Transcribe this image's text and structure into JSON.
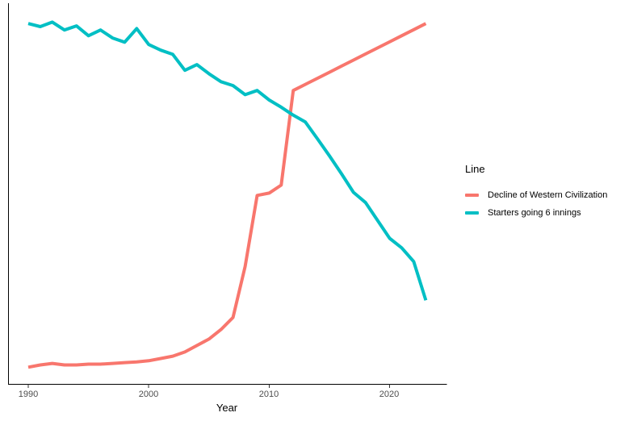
{
  "chart_data": {
    "type": "line",
    "title": "",
    "xlabel": "Year",
    "ylabel": "",
    "x_ticks": [
      1990,
      2000,
      2010,
      2020
    ],
    "xlim": [
      1988.3,
      2024.7
    ],
    "ylim": [
      0,
      100
    ],
    "y_axis_note": "y-axis drawn with no ticks or labels; series values estimated on a 0-100 scale",
    "grid": false,
    "legend_title": "Line",
    "legend_position": "right",
    "background_color": "#FFFFFF",
    "axis_line_color": "#000000",
    "tick_mark_color": "#333333",
    "tick_label_color": "#4D4D4D",
    "x": [
      1990,
      1991,
      1992,
      1993,
      1994,
      1995,
      1996,
      1997,
      1998,
      1999,
      2000,
      2001,
      2002,
      2003,
      2004,
      2005,
      2006,
      2007,
      2008,
      2009,
      2010,
      2011,
      2012,
      2013,
      2014,
      2015,
      2016,
      2017,
      2018,
      2019,
      2020,
      2021,
      2022,
      2023
    ],
    "series": [
      {
        "name": "Decline of Western Civilization",
        "color": "#F8766D",
        "values": [
          4.5,
          5.1,
          5.5,
          5.1,
          5.1,
          5.3,
          5.3,
          5.5,
          5.7,
          5.9,
          6.2,
          6.8,
          7.4,
          8.5,
          10.2,
          11.9,
          14.4,
          17.6,
          31.0,
          49.7,
          50.3,
          52.4,
          77.3,
          78.9,
          80.5,
          82.1,
          83.7,
          85.3,
          86.9,
          88.5,
          90.1,
          91.7,
          93.3,
          94.9
        ]
      },
      {
        "name": "Starters going 6 innings",
        "color": "#00BFC4",
        "values": [
          94.9,
          94.1,
          95.3,
          93.2,
          94.3,
          91.7,
          93.2,
          91.1,
          90.0,
          93.6,
          89.4,
          87.9,
          86.8,
          82.6,
          84.1,
          81.7,
          79.6,
          78.6,
          76.2,
          77.3,
          74.8,
          72.9,
          70.8,
          69.0,
          64.6,
          60.1,
          55.4,
          50.5,
          47.8,
          43.1,
          38.4,
          35.9,
          32.3,
          22.1
        ]
      }
    ]
  }
}
